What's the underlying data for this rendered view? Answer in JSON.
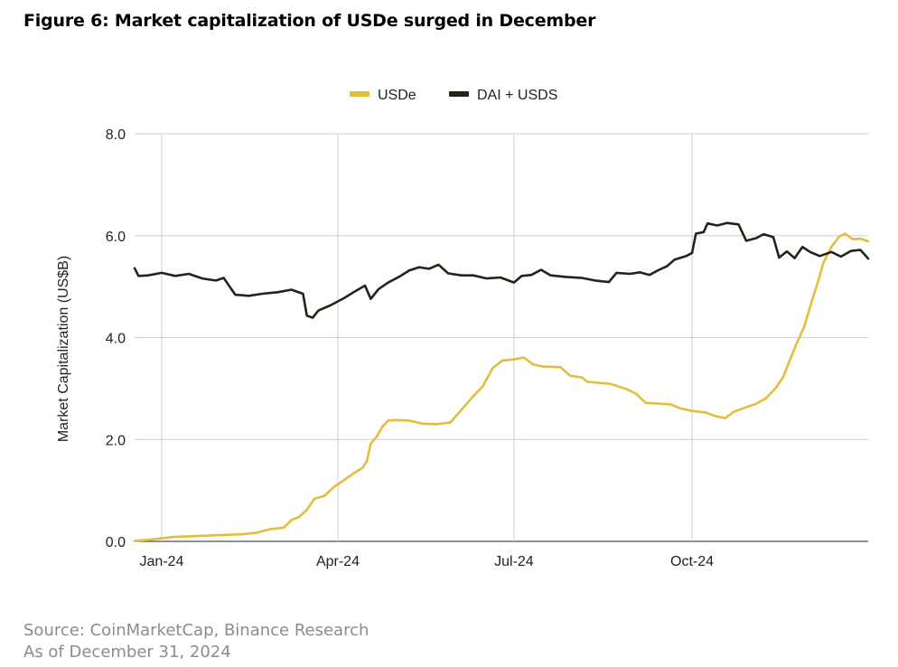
{
  "header": {
    "title": "Figure 6: Market capitalization of USDe surged in December"
  },
  "footer": {
    "source": "Source: CoinMarketCap, Binance Research",
    "as_of": "As of December 31, 2024"
  },
  "chart_data": {
    "type": "line",
    "title": "Figure 6: Market capitalization of USDe surged in December",
    "xlabel": "",
    "ylabel": "Market Capitalization (US$B)",
    "ylim": [
      0,
      8
    ],
    "yticks": [
      0,
      2,
      4,
      6,
      8
    ],
    "ytick_labels": [
      "0.0",
      "2.0",
      "4.0",
      "6.0",
      "8.0"
    ],
    "xlim": [
      "2023-12-18",
      "2024-12-31"
    ],
    "xticks": [
      "2024-01-01",
      "2024-04-01",
      "2024-07-01",
      "2024-10-01"
    ],
    "xtick_labels": [
      "Jan-24",
      "Apr-24",
      "Jul-24",
      "Oct-24"
    ],
    "grid": true,
    "legend_position": "top-center",
    "series": [
      {
        "name": "USDe",
        "color": "#e5bd3c",
        "points": [
          [
            "2023-12-18",
            0.01
          ],
          [
            "2023-12-25",
            0.03
          ],
          [
            "2024-01-01",
            0.06
          ],
          [
            "2024-01-08",
            0.09
          ],
          [
            "2024-01-15",
            0.1
          ],
          [
            "2024-01-22",
            0.11
          ],
          [
            "2024-01-29",
            0.12
          ],
          [
            "2024-02-05",
            0.13
          ],
          [
            "2024-02-12",
            0.14
          ],
          [
            "2024-02-19",
            0.17
          ],
          [
            "2024-02-26",
            0.24
          ],
          [
            "2024-03-04",
            0.27
          ],
          [
            "2024-03-08",
            0.42
          ],
          [
            "2024-03-12",
            0.48
          ],
          [
            "2024-03-16",
            0.62
          ],
          [
            "2024-03-20",
            0.84
          ],
          [
            "2024-03-25",
            0.89
          ],
          [
            "2024-03-30",
            1.07
          ],
          [
            "2024-04-04",
            1.2
          ],
          [
            "2024-04-09",
            1.33
          ],
          [
            "2024-04-14",
            1.45
          ],
          [
            "2024-04-16",
            1.58
          ],
          [
            "2024-04-18",
            1.92
          ],
          [
            "2024-04-21",
            2.05
          ],
          [
            "2024-04-24",
            2.25
          ],
          [
            "2024-04-27",
            2.37
          ],
          [
            "2024-05-01",
            2.38
          ],
          [
            "2024-05-08",
            2.37
          ],
          [
            "2024-05-15",
            2.31
          ],
          [
            "2024-05-22",
            2.3
          ],
          [
            "2024-05-29",
            2.33
          ],
          [
            "2024-06-05",
            2.63
          ],
          [
            "2024-06-10",
            2.85
          ],
          [
            "2024-06-15",
            3.05
          ],
          [
            "2024-06-20",
            3.4
          ],
          [
            "2024-06-25",
            3.55
          ],
          [
            "2024-07-01",
            3.57
          ],
          [
            "2024-07-06",
            3.61
          ],
          [
            "2024-07-11",
            3.47
          ],
          [
            "2024-07-16",
            3.43
          ],
          [
            "2024-07-25",
            3.42
          ],
          [
            "2024-07-30",
            3.25
          ],
          [
            "2024-08-05",
            3.22
          ],
          [
            "2024-08-08",
            3.13
          ],
          [
            "2024-08-20",
            3.09
          ],
          [
            "2024-08-28",
            2.99
          ],
          [
            "2024-09-02",
            2.9
          ],
          [
            "2024-09-07",
            2.72
          ],
          [
            "2024-09-20",
            2.69
          ],
          [
            "2024-09-25",
            2.61
          ],
          [
            "2024-10-01",
            2.56
          ],
          [
            "2024-10-08",
            2.53
          ],
          [
            "2024-10-13",
            2.46
          ],
          [
            "2024-10-18",
            2.42
          ],
          [
            "2024-10-23",
            2.55
          ],
          [
            "2024-10-28",
            2.62
          ],
          [
            "2024-11-03",
            2.7
          ],
          [
            "2024-11-08",
            2.8
          ],
          [
            "2024-11-13",
            3.0
          ],
          [
            "2024-11-17",
            3.22
          ],
          [
            "2024-11-21",
            3.6
          ],
          [
            "2024-11-24",
            3.88
          ],
          [
            "2024-11-28",
            4.22
          ],
          [
            "2024-12-02",
            4.73
          ],
          [
            "2024-12-05",
            5.09
          ],
          [
            "2024-12-08",
            5.48
          ],
          [
            "2024-12-12",
            5.78
          ],
          [
            "2024-12-16",
            5.98
          ],
          [
            "2024-12-19",
            6.04
          ],
          [
            "2024-12-23",
            5.93
          ],
          [
            "2024-12-27",
            5.94
          ],
          [
            "2024-12-31",
            5.89
          ]
        ]
      },
      {
        "name": "DAI + USDS",
        "color": "#262217",
        "points": [
          [
            "2023-12-18",
            5.36
          ],
          [
            "2023-12-20",
            5.21
          ],
          [
            "2023-12-25",
            5.22
          ],
          [
            "2024-01-01",
            5.27
          ],
          [
            "2024-01-08",
            5.21
          ],
          [
            "2024-01-15",
            5.25
          ],
          [
            "2024-01-22",
            5.16
          ],
          [
            "2024-01-29",
            5.12
          ],
          [
            "2024-02-02",
            5.17
          ],
          [
            "2024-02-08",
            4.84
          ],
          [
            "2024-02-15",
            4.82
          ],
          [
            "2024-02-22",
            4.86
          ],
          [
            "2024-03-01",
            4.89
          ],
          [
            "2024-03-08",
            4.94
          ],
          [
            "2024-03-14",
            4.86
          ],
          [
            "2024-03-16",
            4.43
          ],
          [
            "2024-03-19",
            4.39
          ],
          [
            "2024-03-22",
            4.53
          ],
          [
            "2024-03-28",
            4.63
          ],
          [
            "2024-04-04",
            4.77
          ],
          [
            "2024-04-10",
            4.91
          ],
          [
            "2024-04-15",
            5.02
          ],
          [
            "2024-04-18",
            4.76
          ],
          [
            "2024-04-22",
            4.95
          ],
          [
            "2024-04-27",
            5.08
          ],
          [
            "2024-05-03",
            5.2
          ],
          [
            "2024-05-08",
            5.32
          ],
          [
            "2024-05-13",
            5.38
          ],
          [
            "2024-05-18",
            5.35
          ],
          [
            "2024-05-23",
            5.43
          ],
          [
            "2024-05-28",
            5.26
          ],
          [
            "2024-06-04",
            5.22
          ],
          [
            "2024-06-10",
            5.22
          ],
          [
            "2024-06-17",
            5.16
          ],
          [
            "2024-06-24",
            5.18
          ],
          [
            "2024-07-01",
            5.08
          ],
          [
            "2024-07-05",
            5.21
          ],
          [
            "2024-07-10",
            5.23
          ],
          [
            "2024-07-15",
            5.33
          ],
          [
            "2024-07-20",
            5.22
          ],
          [
            "2024-07-28",
            5.19
          ],
          [
            "2024-08-05",
            5.17
          ],
          [
            "2024-08-12",
            5.12
          ],
          [
            "2024-08-19",
            5.09
          ],
          [
            "2024-08-23",
            5.27
          ],
          [
            "2024-08-30",
            5.25
          ],
          [
            "2024-09-04",
            5.28
          ],
          [
            "2024-09-09",
            5.23
          ],
          [
            "2024-09-14",
            5.33
          ],
          [
            "2024-09-18",
            5.4
          ],
          [
            "2024-09-22",
            5.53
          ],
          [
            "2024-09-28",
            5.6
          ],
          [
            "2024-10-01",
            5.66
          ],
          [
            "2024-10-03",
            6.04
          ],
          [
            "2024-10-07",
            6.07
          ],
          [
            "2024-10-09",
            6.24
          ],
          [
            "2024-10-14",
            6.2
          ],
          [
            "2024-10-19",
            6.25
          ],
          [
            "2024-10-25",
            6.22
          ],
          [
            "2024-10-29",
            5.9
          ],
          [
            "2024-11-03",
            5.95
          ],
          [
            "2024-11-07",
            6.03
          ],
          [
            "2024-11-12",
            5.97
          ],
          [
            "2024-11-15",
            5.57
          ],
          [
            "2024-11-19",
            5.69
          ],
          [
            "2024-11-23",
            5.56
          ],
          [
            "2024-11-27",
            5.78
          ],
          [
            "2024-12-01",
            5.68
          ],
          [
            "2024-12-06",
            5.6
          ],
          [
            "2024-12-12",
            5.68
          ],
          [
            "2024-12-17",
            5.59
          ],
          [
            "2024-12-22",
            5.7
          ],
          [
            "2024-12-27",
            5.72
          ],
          [
            "2024-12-31",
            5.55
          ]
        ]
      }
    ]
  }
}
